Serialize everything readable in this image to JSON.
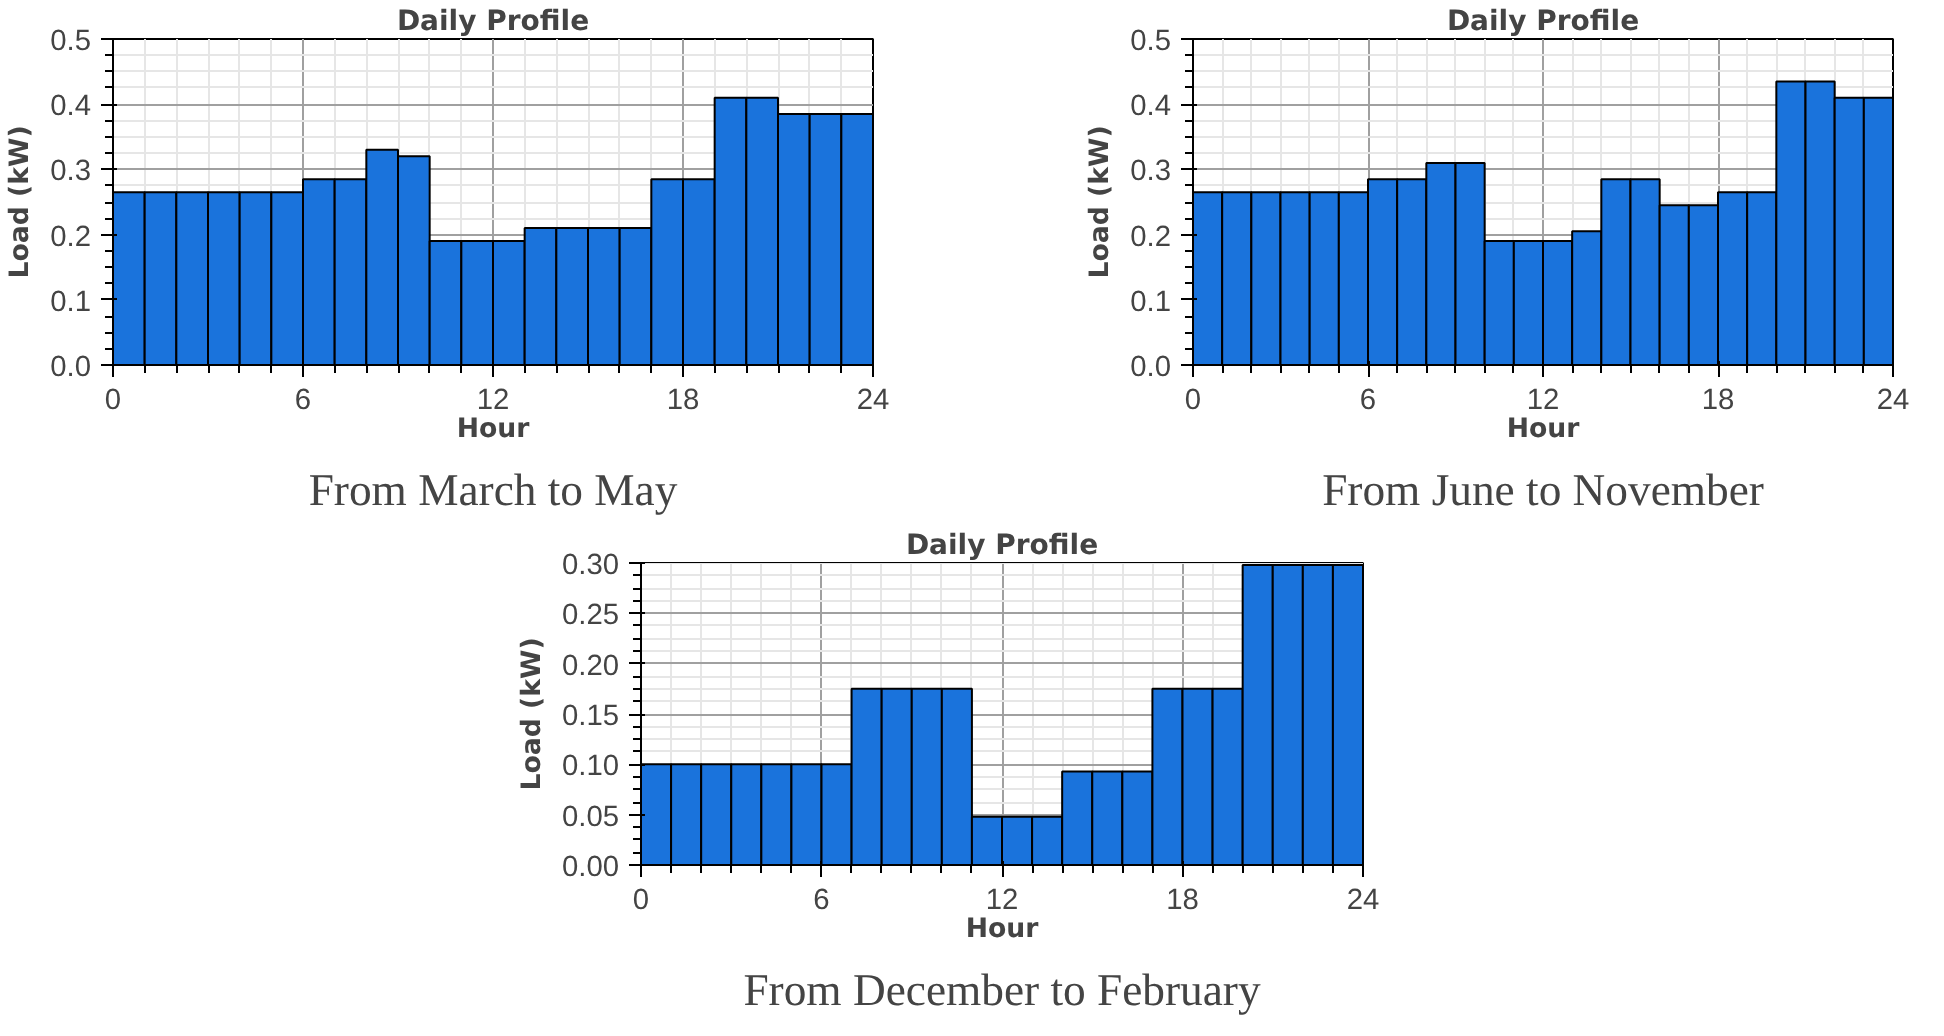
{
  "chart_data": [
    {
      "type": "histogram",
      "title": "Daily Profile",
      "xlabel": "Hour",
      "ylabel": "Load (kW)",
      "annotations": [
        "From March to May"
      ],
      "bins": [
        0,
        1,
        2,
        3,
        4,
        5,
        6,
        7,
        8,
        9,
        10,
        11,
        12,
        13,
        14,
        15,
        16,
        17,
        18,
        19,
        20,
        21,
        22,
        23,
        24
      ],
      "values": [
        0.265,
        0.265,
        0.265,
        0.265,
        0.265,
        0.265,
        0.285,
        0.285,
        0.33,
        0.32,
        0.19,
        0.19,
        0.19,
        0.21,
        0.21,
        0.21,
        0.21,
        0.285,
        0.285,
        0.41,
        0.41,
        0.385,
        0.385,
        0.385
      ],
      "color": "#1a73dc",
      "xlim": [
        0,
        24
      ],
      "xticks": [
        0,
        6,
        12,
        18,
        24
      ],
      "ylim": [
        0,
        0.5
      ],
      "yticks": [
        {
          "value": 0,
          "label": "0.0"
        },
        0.1,
        0.2,
        0.3,
        0.4,
        0.5
      ],
      "grid": true
    },
    {
      "type": "histogram",
      "title": "Daily Profile",
      "xlabel": "Hour",
      "ylabel": "Load (kW)",
      "annotations": [
        "From June to November"
      ],
      "bins": [
        0,
        1,
        2,
        3,
        4,
        5,
        6,
        7,
        8,
        9,
        10,
        11,
        12,
        13,
        14,
        15,
        16,
        17,
        18,
        19,
        20,
        21,
        22,
        23,
        24
      ],
      "values": [
        0.265,
        0.265,
        0.265,
        0.265,
        0.265,
        0.265,
        0.285,
        0.285,
        0.31,
        0.31,
        0.19,
        0.19,
        0.19,
        0.205,
        0.285,
        0.285,
        0.245,
        0.245,
        0.265,
        0.265,
        0.435,
        0.435,
        0.41,
        0.41
      ],
      "color": "#1a73dc",
      "xlim": [
        0,
        24
      ],
      "xticks": [
        0,
        6,
        12,
        18,
        24
      ],
      "ylim": [
        0,
        0.5
      ],
      "yticks": [
        {
          "value": 0,
          "label": "0.0"
        },
        0.1,
        0.2,
        0.3,
        0.4,
        0.5
      ],
      "grid": true
    },
    {
      "type": "histogram",
      "title": "Daily Profile",
      "xlabel": "Hour",
      "ylabel": "Load (kW)",
      "annotations": [
        "From December to February"
      ],
      "bins": [
        0,
        1,
        2,
        3,
        4,
        5,
        6,
        7,
        8,
        9,
        10,
        11,
        12,
        13,
        14,
        15,
        16,
        17,
        18,
        19,
        20,
        21,
        22,
        23,
        24
      ],
      "values": [
        0.1,
        0.1,
        0.1,
        0.1,
        0.1,
        0.1,
        0.1,
        0.175,
        0.175,
        0.175,
        0.175,
        0.048,
        0.048,
        0.048,
        0.093,
        0.093,
        0.093,
        0.175,
        0.175,
        0.175,
        0.298,
        0.298,
        0.298,
        0.298
      ],
      "color": "#1a73dc",
      "xlim": [
        0,
        24
      ],
      "xticks": [
        0,
        6,
        12,
        18,
        24
      ],
      "ylim": [
        0,
        0.3
      ],
      "yticks": [
        {
          "value": 0,
          "label": "0.00"
        },
        {
          "value": 0.05,
          "label": "0.05"
        },
        {
          "value": 0.1,
          "label": "0.10"
        },
        {
          "value": 0.15,
          "label": "0.15"
        },
        {
          "value": 0.2,
          "label": "0.20"
        },
        {
          "value": 0.25,
          "label": "0.25"
        },
        {
          "value": 0.3,
          "label": "0.30"
        }
      ],
      "grid": true
    }
  ]
}
